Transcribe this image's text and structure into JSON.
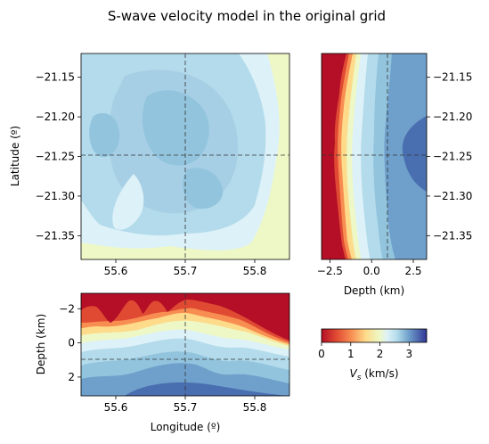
{
  "figure": {
    "title": "S-wave velocity model in the original grid"
  },
  "colors": {
    "v0": "#b40f26",
    "v05": "#e04a33",
    "v1": "#f88d52",
    "v15": "#fddb8a",
    "v2": "#eef8c6",
    "v22": "#ddf1f8",
    "v25": "#b3dbeb",
    "v28": "#93c4de",
    "v3": "#6fa0cb",
    "v35": "#3c59a6",
    "guide": "#333333"
  },
  "chart_data": [
    {
      "type": "heatmap",
      "panel": "map-view",
      "xlabel": "",
      "ylabel": "Latitude (º)",
      "xlim": [
        55.55,
        55.85
      ],
      "ylim": [
        -21.38,
        -21.12
      ],
      "xticks": [
        55.6,
        55.7,
        55.8
      ],
      "xtick_labels": [
        "55.6",
        "55.7",
        "55.8"
      ],
      "yticks": [
        -21.15,
        -21.2,
        -21.25,
        -21.3,
        -21.35
      ],
      "ytick_labels": [
        "−21.15",
        "−21.20",
        "−21.25",
        "−21.30",
        "−21.35"
      ],
      "guide_lines": {
        "x": 55.7,
        "y": -21.25
      },
      "note": "contourf of Vs at depth 1 km"
    },
    {
      "type": "heatmap",
      "panel": "latitude-depth-section",
      "xlabel": "Depth (km)",
      "ylabel": "",
      "xlim": [
        -3,
        3.3
      ],
      "ylim": [
        -21.38,
        -21.12
      ],
      "xticks": [
        -2.5,
        0,
        2.5
      ],
      "xtick_labels": [
        "−2.5",
        "0.0",
        "2.5"
      ],
      "yticks": [
        -21.15,
        -21.2,
        -21.25,
        -21.3,
        -21.35
      ],
      "ytick_labels": [
        "−21.15",
        "−21.20",
        "−21.25",
        "−21.30",
        "−21.35"
      ],
      "guide_lines": {
        "x": 1,
        "y": -21.25
      }
    },
    {
      "type": "heatmap",
      "panel": "longitude-depth-section",
      "xlabel": "Longitude (º)",
      "ylabel": "Depth (km)",
      "xlim": [
        55.55,
        55.85
      ],
      "ylim": [
        3.1,
        -2.9
      ],
      "xticks": [
        55.6,
        55.7,
        55.8
      ],
      "xtick_labels": [
        "55.6",
        "55.7",
        "55.8"
      ],
      "yticks": [
        -2,
        0,
        2
      ],
      "ytick_labels": [
        "−2",
        "0",
        "2"
      ],
      "guide_lines": {
        "x": 55.7,
        "y": 1
      }
    }
  ],
  "colorbar": {
    "label": "V_s (km/s)",
    "label_main": "V",
    "label_sub": "s",
    "label_unit": " (km/s)",
    "range": [
      0,
      3.6
    ],
    "ticks": [
      0,
      1,
      2,
      3
    ],
    "tick_labels": [
      "0",
      "1",
      "2",
      "3"
    ]
  },
  "extra_ticks": {
    "lon_cut_depth_ticks": [
      -2,
      0,
      2
    ]
  }
}
